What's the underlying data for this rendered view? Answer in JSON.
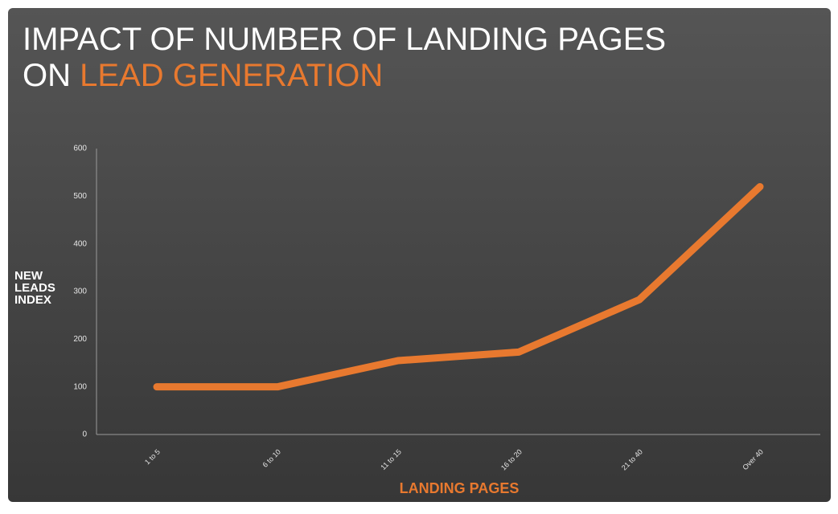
{
  "chart_data": {
    "type": "line",
    "title": [
      "IMPACT OF NUMBER OF LANDING PAGES",
      "ON",
      "LEAD GENERATION"
    ],
    "x_label": "LANDING PAGES",
    "y_label": "NEW LEADS INDEX",
    "categories": [
      "1 to 5",
      "6 to 10",
      "11 to 15",
      "16 to 20",
      "21 to 40",
      "Over 40"
    ],
    "values": [
      100,
      100,
      155,
      173,
      283,
      520
    ],
    "color": "#e8792f",
    "ylim": [
      0,
      600
    ],
    "yticks": [
      0,
      100,
      200,
      300,
      400,
      500,
      600
    ],
    "grid": false
  }
}
